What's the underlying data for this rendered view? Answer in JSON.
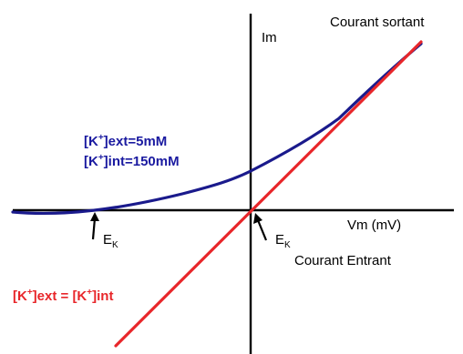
{
  "labels": {
    "current_axis": "Im",
    "voltage_axis": "Vm (mV)",
    "outward_current": "Courant sortant",
    "inward_current": "Courant Entrant",
    "reversal_left_main": "E",
    "reversal_left_sub": "K",
    "reversal_center_main": "E",
    "reversal_center_sub": "K",
    "blue_line1_pre": "[K",
    "blue_line1_sup": "+",
    "blue_line1_post": "]ext=5mM",
    "blue_line2_pre": "[K",
    "blue_line2_sup": "+",
    "blue_line2_post": "]int=150mM",
    "red_pre": "[K",
    "red_sup1": "+",
    "red_mid": "]ext = [K",
    "red_sup2": "+",
    "red_post": "]int"
  },
  "colors": {
    "axes": "#000000",
    "blue_curve": "#1a1a8c",
    "red_line": "#e8262a",
    "blue_text": "#1a1aa0",
    "red_text": "#e8262a",
    "black_text": "#000000"
  }
}
